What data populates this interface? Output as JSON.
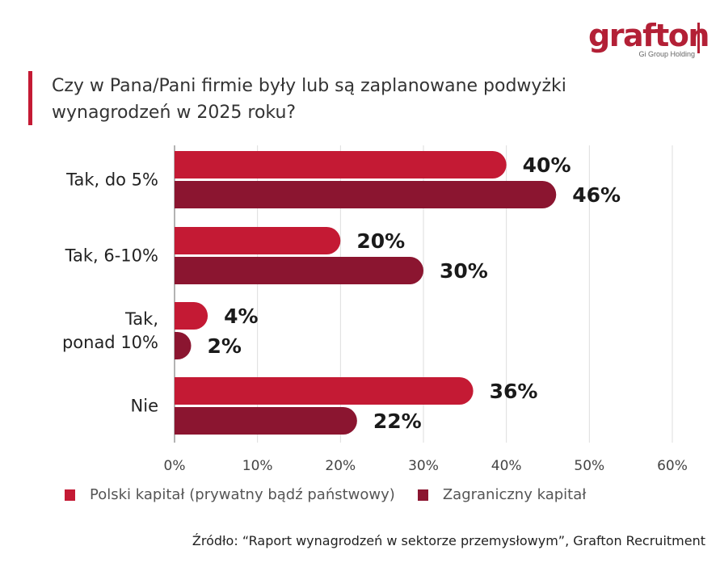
{
  "logo": {
    "text": "grafton",
    "subtitle": "Gi Group Holding"
  },
  "title": "Czy w Pana/Pani firmie były lub są zaplanowane podwyżki wynagrodzeń w 2025 roku?",
  "colors": {
    "polish": "#c41a34",
    "foreign": "#8b1530",
    "accent": "#c41a34"
  },
  "chart_data": {
    "type": "bar",
    "orientation": "horizontal",
    "title": "Czy w Pana/Pani firmie były lub są zaplanowane podwyżki wynagrodzeń w 2025 roku?",
    "categories": [
      "Tak, do 5%",
      "Tak, 6-10%",
      "Tak, ponad 10%",
      "Nie"
    ],
    "category_lines": [
      [
        "Tak, do 5%"
      ],
      [
        "Tak, 6-10%"
      ],
      [
        "Tak,",
        "ponad 10%"
      ],
      [
        "Nie"
      ]
    ],
    "series": [
      {
        "name": "Polski kapitał (prywatny bądź państwowy)",
        "values": [
          40,
          20,
          4,
          36
        ],
        "labels": [
          "40%",
          "20%",
          "4%",
          "36%"
        ]
      },
      {
        "name": "Zagraniczny kapitał",
        "values": [
          46,
          30,
          2,
          22
        ],
        "labels": [
          "46%",
          "30%",
          "2%",
          "22%"
        ]
      }
    ],
    "xlim": [
      0,
      60
    ],
    "xticks": [
      0,
      10,
      20,
      30,
      40,
      50,
      60
    ],
    "xtick_labels": [
      "0%",
      "10%",
      "20%",
      "30%",
      "40%",
      "50%",
      "60%"
    ],
    "grid": true,
    "legend_position": "bottom"
  },
  "source": "Źródło: “Raport wynagrodzeń w  sektorze przemysłowym”, Grafton Recruitment"
}
